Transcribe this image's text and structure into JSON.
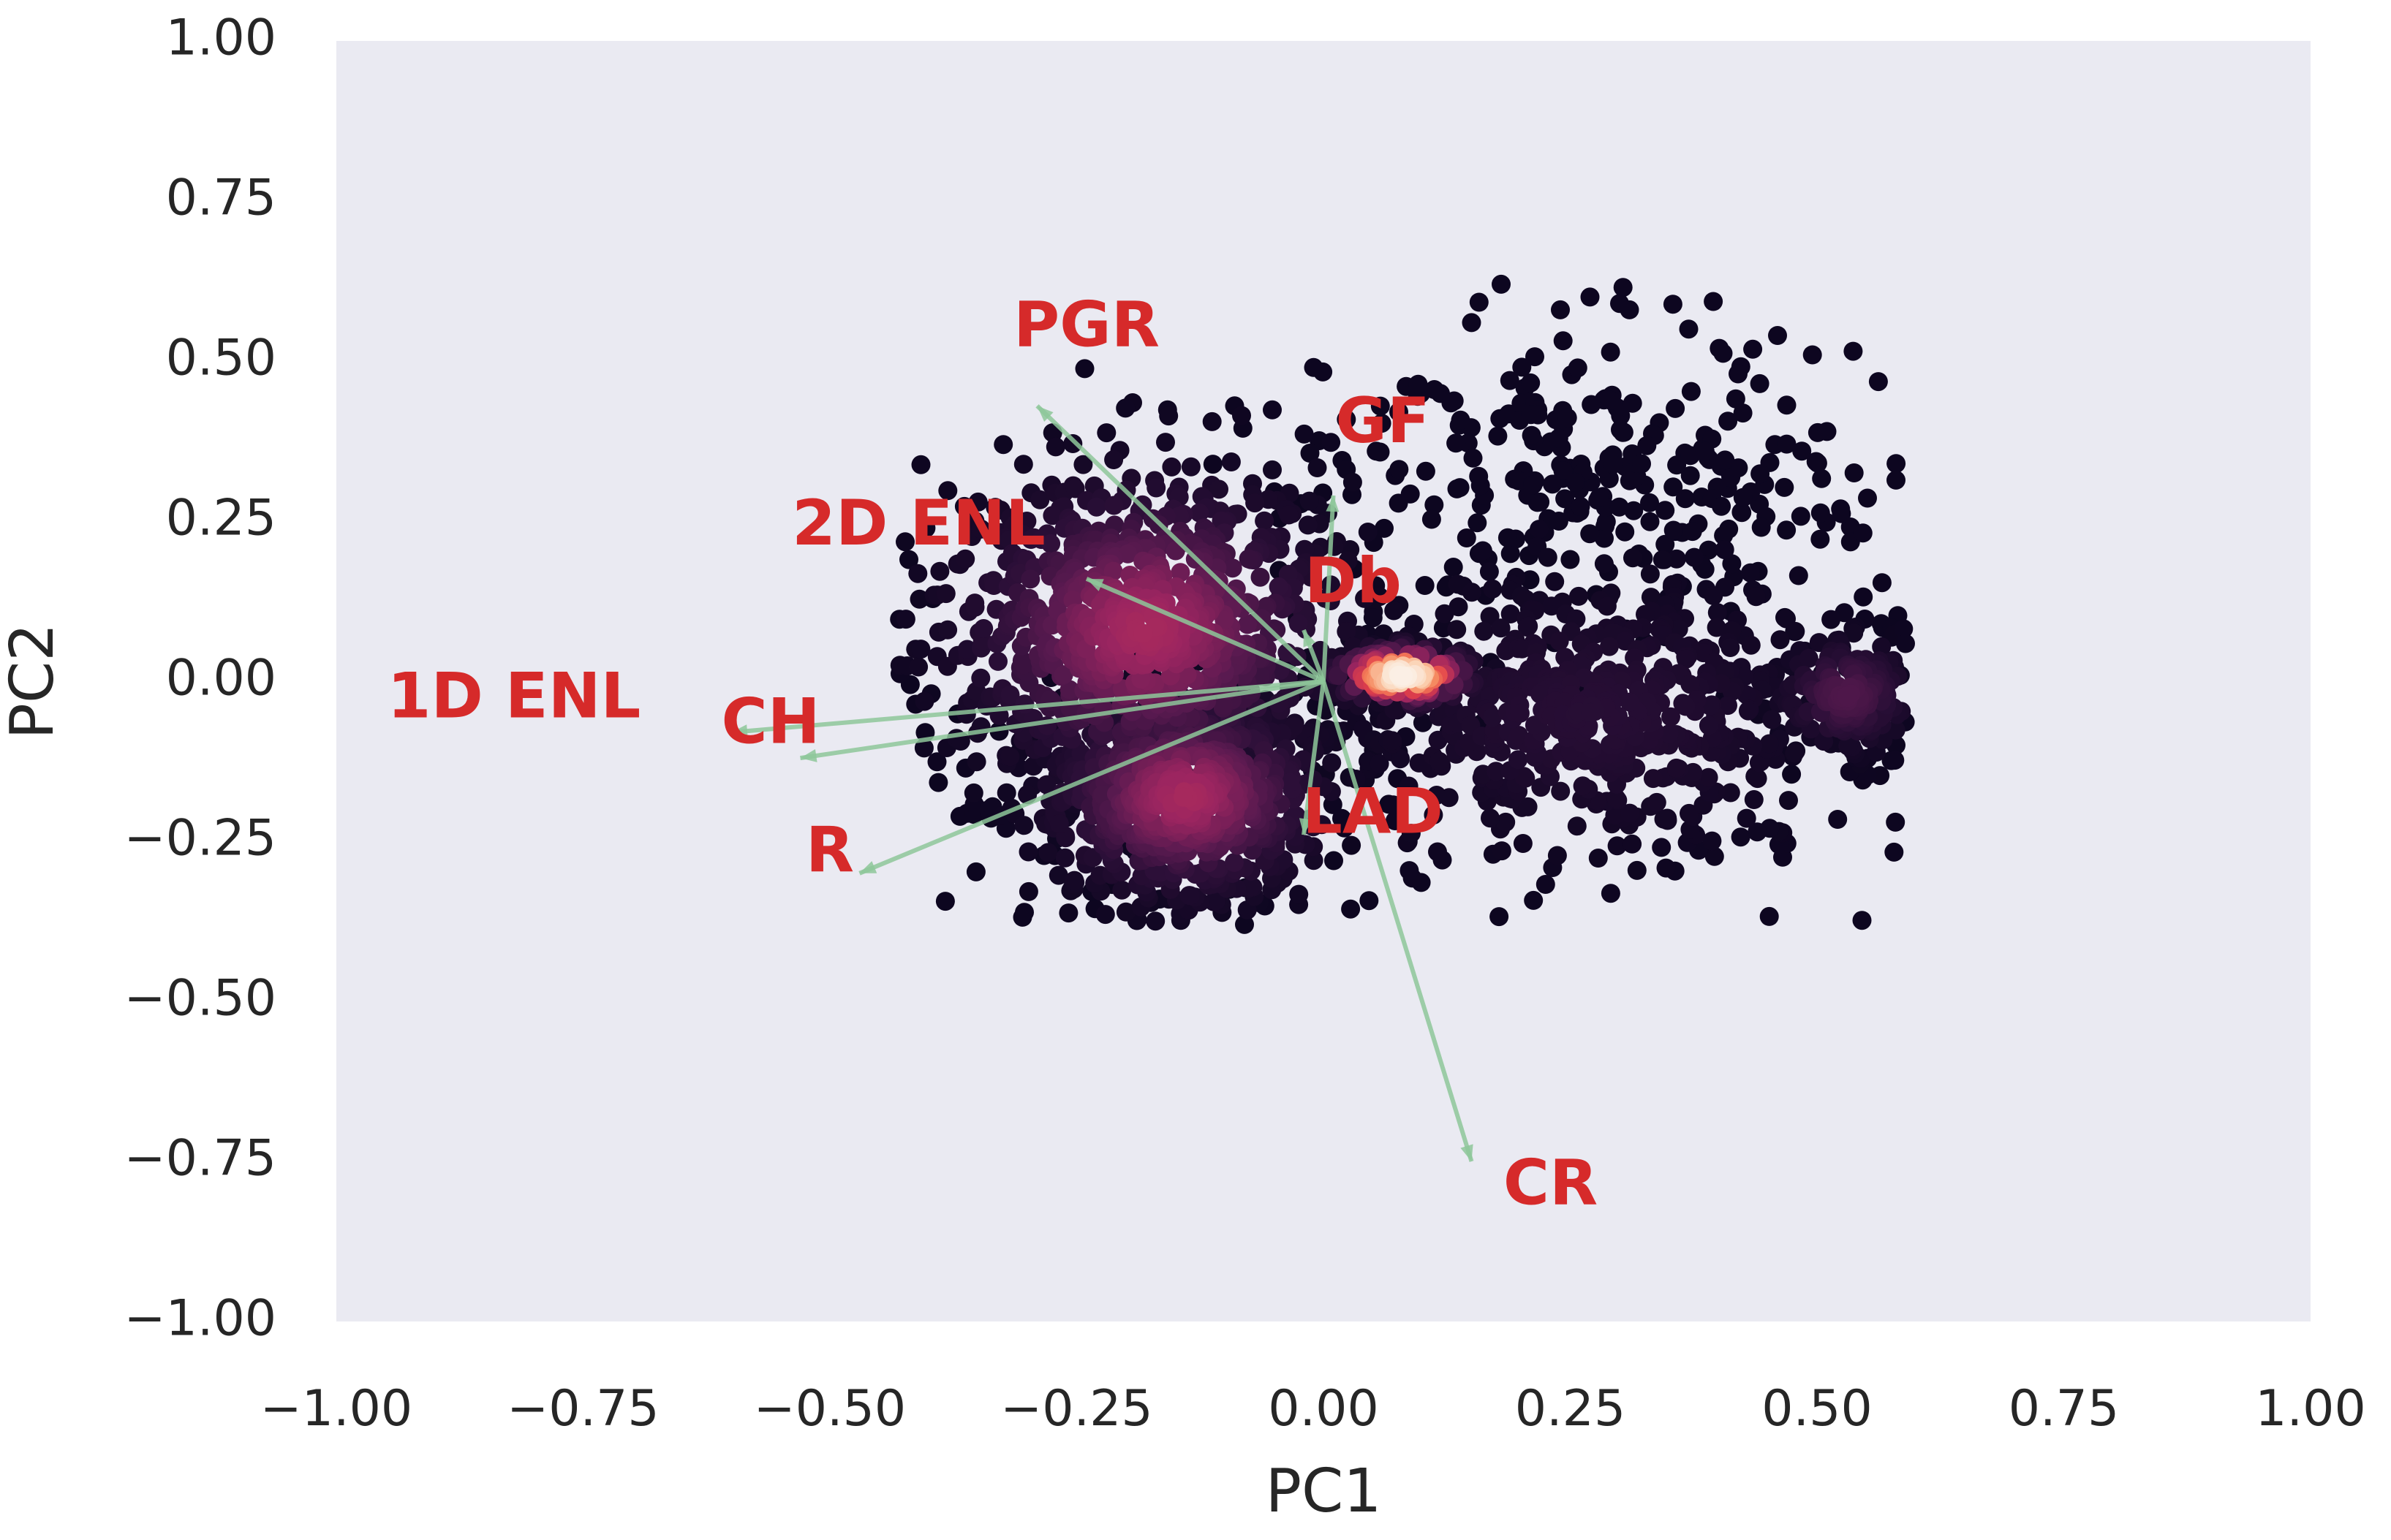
{
  "chart_data": {
    "type": "scatter",
    "subtype": "pca-biplot-with-density-coloured-points",
    "xlabel": "PC1",
    "ylabel": "PC2",
    "xlim": [
      -1.0,
      1.0
    ],
    "ylim": [
      -1.0,
      1.0
    ],
    "grid": false,
    "background_color": "#eaeaf2",
    "x_ticks": [
      "−1.00",
      "−0.75",
      "−0.50",
      "−0.25",
      "0.00",
      "0.25",
      "0.50",
      "0.75",
      "1.00"
    ],
    "y_ticks": [
      "1.00",
      "0.75",
      "0.50",
      "0.25",
      "0.00",
      "−0.25",
      "−0.50",
      "−0.75",
      "−1.00"
    ],
    "x_tick_values": [
      -1.0,
      -0.75,
      -0.5,
      -0.25,
      0.0,
      0.25,
      0.5,
      0.75,
      1.0
    ],
    "y_tick_values": [
      1.0,
      0.75,
      0.5,
      0.25,
      0.0,
      -0.25,
      -0.5,
      -0.75,
      -1.0
    ],
    "colormap": [
      "#0d0620",
      "#2c0f38",
      "#5a1a50",
      "#9c2560",
      "#e2404a",
      "#f5845a",
      "#fbd0b0",
      "#fbf0e6"
    ],
    "loading_color": "#8ec79a",
    "label_color": "#d62a2a",
    "loadings": [
      {
        "name": "PGR",
        "x": -0.29,
        "y": 0.43,
        "label_x": -0.24,
        "label_y": 0.55
      },
      {
        "name": "GF",
        "x": 0.01,
        "y": 0.29,
        "label_x": 0.06,
        "label_y": 0.4
      },
      {
        "name": "2D ENL",
        "x": -0.24,
        "y": 0.16,
        "label_x": -0.41,
        "label_y": 0.24
      },
      {
        "name": "Db",
        "x": -0.02,
        "y": 0.08,
        "label_x": 0.03,
        "label_y": 0.15
      },
      {
        "name": "1D ENL",
        "x": -0.6,
        "y": -0.08,
        "label_x": -0.82,
        "label_y": -0.03
      },
      {
        "name": "CH",
        "x": -0.53,
        "y": -0.12,
        "label_x": -0.56,
        "label_y": -0.07
      },
      {
        "name": "R",
        "x": -0.47,
        "y": -0.3,
        "label_x": -0.5,
        "label_y": -0.27
      },
      {
        "name": "LAD",
        "x": -0.02,
        "y": -0.24,
        "label_x": 0.05,
        "label_y": -0.21
      },
      {
        "name": "CR",
        "x": 0.15,
        "y": -0.75,
        "label_x": 0.23,
        "label_y": -0.79
      }
    ],
    "density_clusters": [
      {
        "name": "upper-left cluster",
        "cx": -0.18,
        "cy": 0.08,
        "sx": 0.11,
        "sy": 0.14,
        "n": 900,
        "level": 0.45
      },
      {
        "name": "lower-left cluster",
        "cx": -0.14,
        "cy": -0.18,
        "sx": 0.08,
        "sy": 0.09,
        "n": 700,
        "level": 0.45
      },
      {
        "name": "central hotspot",
        "cx": 0.08,
        "cy": 0.01,
        "sx": 0.04,
        "sy": 0.025,
        "n": 160,
        "level": 1.0
      },
      {
        "name": "right cluster",
        "cx": 0.27,
        "cy": -0.05,
        "sx": 0.14,
        "sy": 0.12,
        "n": 650,
        "level": 0.12
      },
      {
        "name": "far-right cluster",
        "cx": 0.53,
        "cy": -0.02,
        "sx": 0.04,
        "sy": 0.05,
        "n": 200,
        "level": 0.25
      },
      {
        "name": "upper-right sparse spread",
        "cx": 0.28,
        "cy": 0.32,
        "sx": 0.14,
        "sy": 0.12,
        "n": 260,
        "level": 0.0
      }
    ],
    "extreme_points": [
      {
        "x": 0.18,
        "y": 0.62
      },
      {
        "x": 0.24,
        "y": 0.58
      },
      {
        "x": 0.27,
        "y": 0.6
      },
      {
        "x": 0.3,
        "y": 0.59
      },
      {
        "x": 0.31,
        "y": 0.58
      },
      {
        "x": 0.37,
        "y": 0.55
      },
      {
        "x": 0.46,
        "y": 0.54
      },
      {
        "x": 0.15,
        "y": 0.56
      },
      {
        "x": -0.01,
        "y": 0.49
      },
      {
        "x": 0.42,
        "y": 0.48
      },
      {
        "x": 0.51,
        "y": 0.39
      },
      {
        "x": -0.09,
        "y": 0.43
      },
      {
        "x": -0.42,
        "y": 0.19
      },
      {
        "x": -0.08,
        "y": -0.38
      },
      {
        "x": 0.58,
        "y": -0.1
      }
    ]
  }
}
